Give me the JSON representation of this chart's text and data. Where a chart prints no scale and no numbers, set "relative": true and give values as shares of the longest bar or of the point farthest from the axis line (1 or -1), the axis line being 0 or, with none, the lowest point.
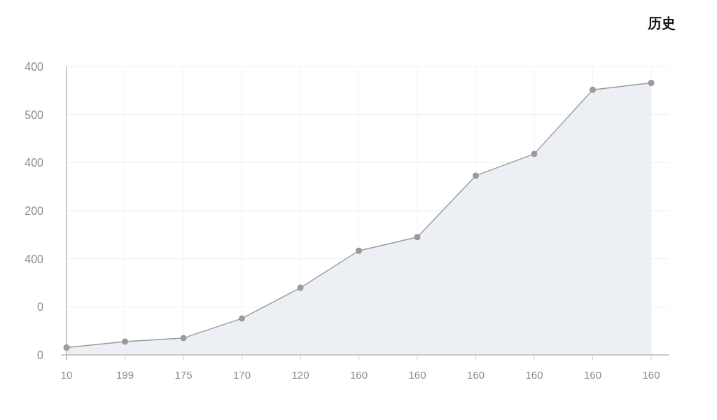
{
  "chart_data": {
    "type": "area",
    "title": "历史",
    "relative": true,
    "categories": [
      "10",
      "199",
      "175",
      "170",
      "120",
      "160",
      "160",
      "160",
      "160",
      "160",
      "160"
    ],
    "series": [
      {
        "color": "#9a9a9a",
        "values": [
          0.027,
          0.049,
          0.062,
          0.134,
          0.247,
          0.383,
          0.433,
          0.659,
          0.739,
          0.975,
          1
        ]
      }
    ],
    "annotations": [
      "0",
      "0",
      "400",
      "200",
      "400",
      "500",
      "400"
    ],
    "grid": true,
    "marker": "circle",
    "line_style": "solid"
  }
}
